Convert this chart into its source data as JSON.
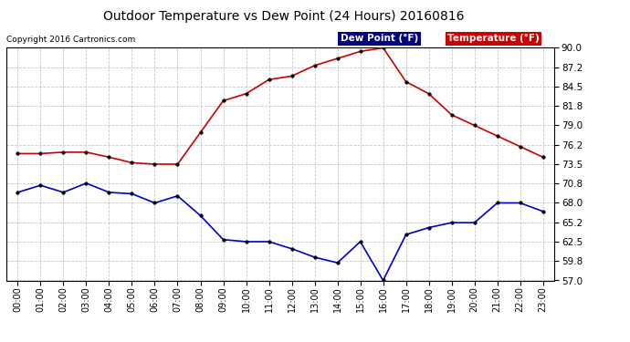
{
  "title": "Outdoor Temperature vs Dew Point (24 Hours) 20160816",
  "copyright": "Copyright 2016 Cartronics.com",
  "hours": [
    0,
    1,
    2,
    3,
    4,
    5,
    6,
    7,
    8,
    9,
    10,
    11,
    12,
    13,
    14,
    15,
    16,
    17,
    18,
    19,
    20,
    21,
    22,
    23
  ],
  "temperature": [
    75.0,
    75.0,
    75.2,
    75.2,
    74.5,
    73.7,
    73.5,
    73.5,
    78.0,
    82.5,
    83.5,
    85.5,
    86.0,
    87.5,
    88.5,
    89.5,
    90.0,
    85.2,
    83.5,
    80.5,
    79.0,
    77.5,
    76.0,
    74.5
  ],
  "dew_point": [
    69.5,
    70.5,
    69.5,
    70.8,
    69.5,
    69.3,
    68.0,
    69.0,
    66.2,
    62.8,
    62.5,
    62.5,
    61.5,
    60.3,
    59.5,
    62.5,
    57.0,
    63.5,
    64.5,
    65.2,
    65.2,
    68.0,
    68.0,
    66.8
  ],
  "ylim": [
    57.0,
    90.0
  ],
  "yticks": [
    57.0,
    59.8,
    62.5,
    65.2,
    68.0,
    70.8,
    73.5,
    76.2,
    79.0,
    81.8,
    84.5,
    87.2,
    90.0
  ],
  "temp_color": "#cc0000",
  "dew_color": "#0000cc",
  "plot_bg_color": "#ffffff",
  "fig_bg_color": "#ffffff",
  "grid_color": "#bbbbbb",
  "legend_temp_bg": "#cc0000",
  "legend_dew_bg": "#000080",
  "legend_dew_label": "Dew Point (°F)",
  "legend_temp_label": "Temperature (°F)"
}
